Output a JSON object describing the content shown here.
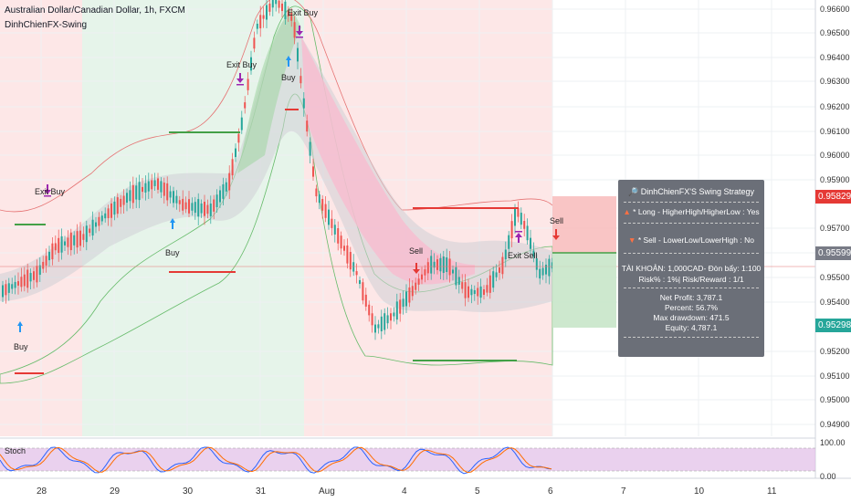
{
  "header": {
    "symbol_line": "Australian Dollar/Canadian Dollar, 1h, FXCM",
    "indicator": "DinhChienFX-Swing"
  },
  "price_axis": {
    "labels": [
      "0.96600",
      "0.96500",
      "0.96400",
      "0.96300",
      "0.96200",
      "0.96100",
      "0.96000",
      "0.95900",
      "0.95700",
      "0.95600",
      "0.95500",
      "0.95400",
      "0.95200",
      "0.95100",
      "0.95000",
      "0.94900"
    ],
    "tag_upper": "0.95829",
    "tag_current": "0.95599",
    "tag_lower": "0.95298",
    "color_upper": "#e53935",
    "color_current": "#787b86",
    "color_lower": "#26a69a"
  },
  "stoch": {
    "label": "Stoch",
    "axis_top": "100.00",
    "axis_bottom": "0.00"
  },
  "time_axis": [
    "28",
    "29",
    "30",
    "31",
    "Aug",
    "4",
    "5",
    "6",
    "7",
    "10",
    "11"
  ],
  "annotations": {
    "exit_buy": "Exit Buy",
    "buy": "Buy",
    "sell": "Sell",
    "exit_sell": "Exit Sell"
  },
  "panel": {
    "title": "DinhChienFX'S Swing Strategy",
    "long_line": "* Long   - HigherHigh/HigherLow : Yes",
    "sell_line": "* Sell   - LowerLow/LowerHigh : No",
    "account_line": "TÀI KHOẢN: 1,000CAD- Đòn bẩy: 1:100",
    "risk_line": "Risk% : 1%| Risk/Reward : 1/1",
    "net_profit": "Net Profit: 3,787.1",
    "percent": "Percent: 56.7%",
    "max_drawdown": "Max drawdown: 471.5",
    "equity": "Equity: 4,787.1"
  }
}
